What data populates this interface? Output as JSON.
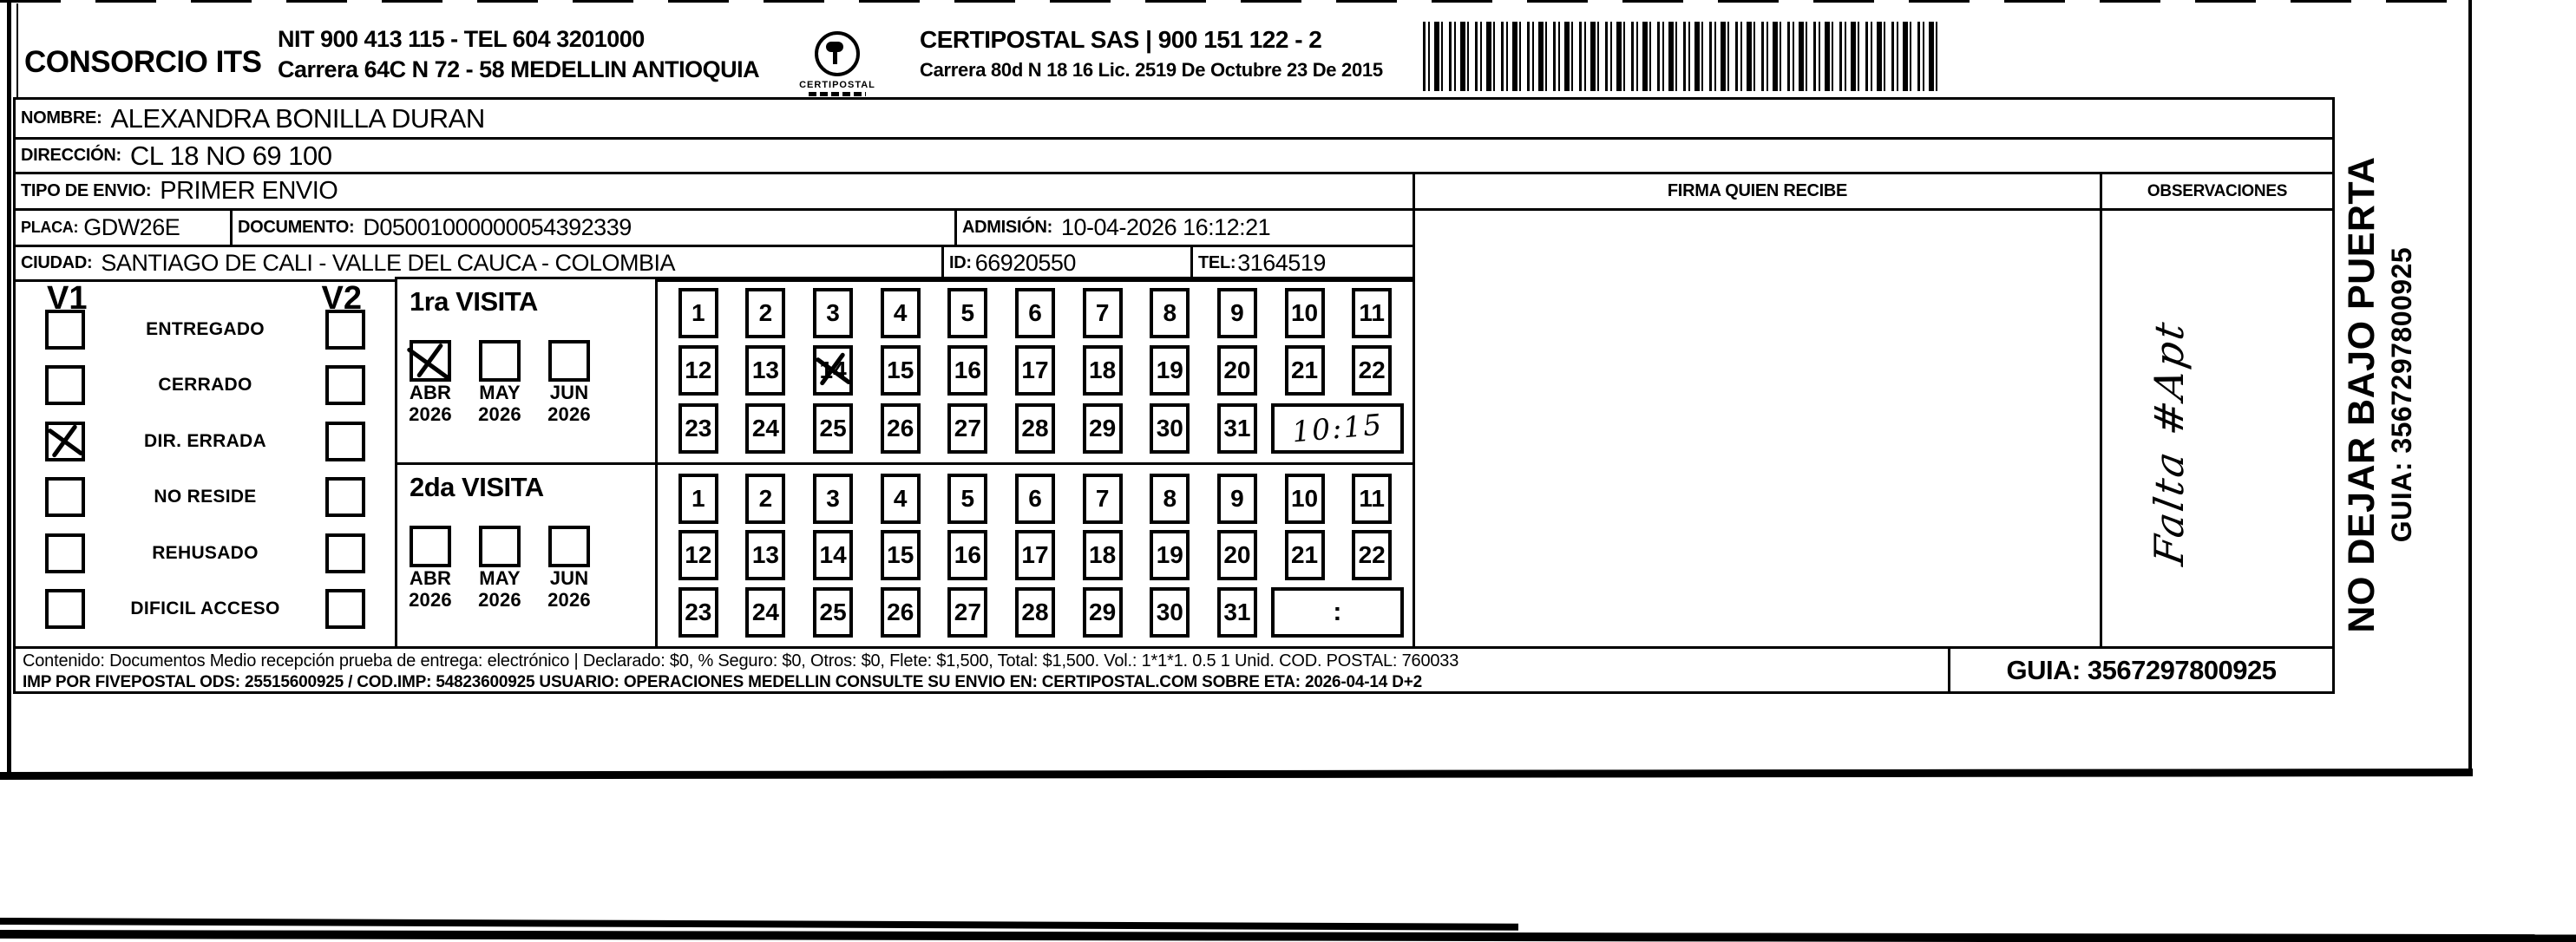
{
  "colors": {
    "ink": "#000000",
    "paper": "#ffffff"
  },
  "header": {
    "company_name": "CONSORCIO ITS",
    "company_nit_line": "NIT 900 413 115 - TEL 604 3201000",
    "company_address_line": "Carrera 64C N 72 - 58 MEDELLIN ANTIOQUIA",
    "logo_name": "CERTIPOSTAL",
    "postal_name_line": "CERTIPOSTAL SAS | 900 151 122 - 2",
    "postal_address_line": "Carrera 80d N 18 16  Lic. 2519 De Octubre 23 De 2015"
  },
  "shipment": {
    "nombre_label": "NOMBRE:",
    "nombre": "ALEXANDRA BONILLA DURAN",
    "direccion_label": "DIRECCIÓN:",
    "direccion": "CL 18 NO 69 100",
    "tipo_envio_label": "TIPO DE ENVIO:",
    "tipo_envio": "PRIMER ENVIO",
    "placa_label": "PLACA:",
    "placa": "GDW26E",
    "documento_label": "DOCUMENTO:",
    "documento": "D05001000000054392339",
    "admision_label": "ADMISIÓN:",
    "admision": "10-04-2026 16:12:21",
    "ciudad_label": "CIUDAD:",
    "ciudad": "SANTIAGO DE CALI - VALLE DEL CAUCA - COLOMBIA",
    "id_label": "ID:",
    "id_value": "66920550",
    "tel_label": "TEL:",
    "tel": "3164519"
  },
  "columns": {
    "firma_header": "FIRMA QUIEN RECIBE",
    "observaciones_header": "OBSERVACIONES"
  },
  "status_panel": {
    "v1_header": "V1",
    "v2_header": "V2",
    "options": [
      {
        "label": "ENTREGADO"
      },
      {
        "label": "CERRADO"
      },
      {
        "label": "DIR. ERRADA",
        "v1checked": true
      },
      {
        "label": "NO RESIDE"
      },
      {
        "label": "REHUSADO"
      },
      {
        "label": "DIFICIL ACCESO"
      }
    ]
  },
  "visits": {
    "first": {
      "title": "1ra VISITA",
      "months": [
        {
          "label": "ABR",
          "year": "2026",
          "checked": true
        },
        {
          "label": "MAY",
          "year": "2026"
        },
        {
          "label": "JUN",
          "year": "2026"
        }
      ],
      "days": [
        "1",
        "2",
        "3",
        "4",
        "5",
        "6",
        "7",
        "8",
        "9",
        "10",
        "11",
        "12",
        "13",
        {
          "label": "14",
          "crossed": true
        },
        "15",
        "16",
        "17",
        "18",
        "19",
        "20",
        "21",
        "22",
        "23",
        "24",
        "25",
        "26",
        "27",
        "28",
        "29",
        "30",
        "31"
      ],
      "time": "10:15"
    },
    "second": {
      "title": "2da VISITA",
      "months": [
        {
          "label": "ABR",
          "year": "2026"
        },
        {
          "label": "MAY",
          "year": "2026"
        },
        {
          "label": "JUN",
          "year": "2026"
        }
      ],
      "days": [
        "1",
        "2",
        "3",
        "4",
        "5",
        "6",
        "7",
        "8",
        "9",
        "10",
        "11",
        "12",
        "13",
        "14",
        "15",
        "16",
        "17",
        "18",
        "19",
        "20",
        "21",
        "22",
        "23",
        "24",
        "25",
        "26",
        "27",
        "28",
        "29",
        "30",
        "31"
      ],
      "time": ":"
    }
  },
  "observations_note": "Falta #Apt",
  "side_label": {
    "line1": "NO DEJAR BAJO PUERTA",
    "line2": "GUIA: 3567297800925"
  },
  "footer": {
    "content_line": "Contenido: Documentos Medio recepción prueba de entrega: electrónico | Declarado: $0, % Seguro: $0, Otros: $0, Flete: $1,500, Total: $1,500. Vol.: 1*1*1. 0.5  1 Unid. COD. POSTAL: 760033",
    "imp_line": "IMP POR FIVEPOSTAL ODS: 25515600925 / COD.IMP: 54823600925 USUARIO: OPERACIONES MEDELLIN CONSULTE SU ENVIO EN: CERTIPOSTAL.COM SOBRE ETA: 2026-04-14 D+2",
    "guia": "GUIA: 3567297800925"
  }
}
